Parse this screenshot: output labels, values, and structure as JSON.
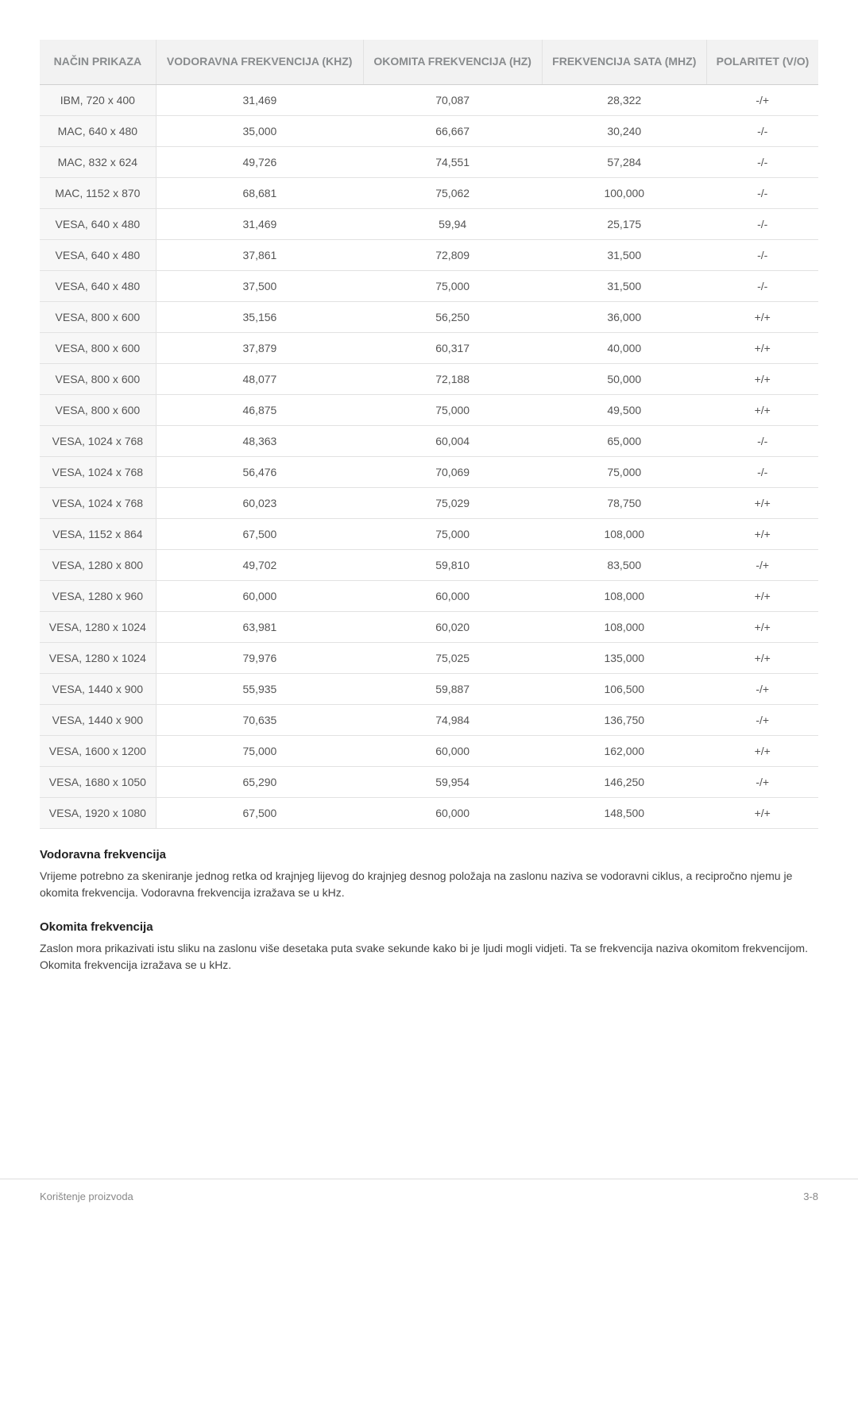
{
  "table": {
    "columns": [
      "NAČIN PRIKAZA",
      "VODORAVNA FREKVENCIJA (KHZ)",
      "OKOMITA FREKVENCIJA (HZ)",
      "FREKVENCIJA SATA (MHZ)",
      "POLARITET (V/O)"
    ],
    "header_color": "#888b8d",
    "header_bg": "#f2f2f2",
    "border_color": "#e2e2e2",
    "rows": [
      [
        "IBM, 720 x 400",
        "31,469",
        "70,087",
        "28,322",
        "-/+"
      ],
      [
        "MAC, 640 x 480",
        "35,000",
        "66,667",
        "30,240",
        "-/-"
      ],
      [
        "MAC, 832 x 624",
        "49,726",
        "74,551",
        "57,284",
        "-/-"
      ],
      [
        "MAC, 1152 x 870",
        "68,681",
        "75,062",
        "100,000",
        "-/-"
      ],
      [
        "VESA, 640 x 480",
        "31,469",
        "59,94",
        "25,175",
        "-/-"
      ],
      [
        "VESA, 640 x 480",
        "37,861",
        "72,809",
        "31,500",
        "-/-"
      ],
      [
        "VESA, 640 x 480",
        "37,500",
        "75,000",
        "31,500",
        "-/-"
      ],
      [
        "VESA, 800 x 600",
        "35,156",
        "56,250",
        "36,000",
        "+/+"
      ],
      [
        "VESA, 800 x 600",
        "37,879",
        "60,317",
        "40,000",
        "+/+"
      ],
      [
        "VESA, 800 x 600",
        "48,077",
        "72,188",
        "50,000",
        "+/+"
      ],
      [
        "VESA, 800 x 600",
        "46,875",
        "75,000",
        "49,500",
        "+/+"
      ],
      [
        "VESA, 1024 x 768",
        "48,363",
        "60,004",
        "65,000",
        "-/-"
      ],
      [
        "VESA, 1024 x 768",
        "56,476",
        "70,069",
        "75,000",
        "-/-"
      ],
      [
        "VESA, 1024 x 768",
        "60,023",
        "75,029",
        "78,750",
        "+/+"
      ],
      [
        "VESA, 1152 x 864",
        "67,500",
        "75,000",
        "108,000",
        "+/+"
      ],
      [
        "VESA, 1280 x 800",
        "49,702",
        "59,810",
        "83,500",
        "-/+"
      ],
      [
        "VESA, 1280 x 960",
        "60,000",
        "60,000",
        "108,000",
        "+/+"
      ],
      [
        "VESA, 1280 x 1024",
        "63,981",
        "60,020",
        "108,000",
        "+/+"
      ],
      [
        "VESA, 1280 x 1024",
        "79,976",
        "75,025",
        "135,000",
        "+/+"
      ],
      [
        "VESA, 1440 x 900",
        "55,935",
        "59,887",
        "106,500",
        "-/+"
      ],
      [
        "VESA, 1440 x 900",
        "70,635",
        "74,984",
        "136,750",
        "-/+"
      ],
      [
        "VESA, 1600 x 1200",
        "75,000",
        "60,000",
        "162,000",
        "+/+"
      ],
      [
        "VESA, 1680 x 1050",
        "65,290",
        "59,954",
        "146,250",
        "-/+"
      ],
      [
        "VESA, 1920 x 1080",
        "67,500",
        "60,000",
        "148,500",
        "+/+"
      ]
    ]
  },
  "sections": {
    "s1_title": "Vodoravna frekvencija",
    "s1_body": "Vrijeme potrebno za skeniranje jednog retka od krajnjeg lijevog do krajnjeg desnog položaja na zaslonu naziva se vodoravni ciklus, a recipročno njemu je okomita frekvencija. Vodoravna frekvencija izražava se u kHz.",
    "s2_title": "Okomita frekvencija",
    "s2_body": "Zaslon mora prikazivati istu sliku na zaslonu više desetaka puta svake sekunde kako bi je ljudi mogli vidjeti. Ta se frekvencija naziva okomitom frekvencijom. Okomita frekvencija izražava se u kHz."
  },
  "footer": {
    "left": "Korištenje proizvoda",
    "right": "3-8"
  }
}
